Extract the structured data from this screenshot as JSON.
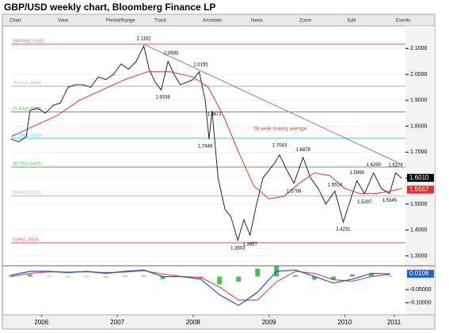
{
  "chart_data": {
    "type": "line",
    "title": "GBP/USD weekly chart, Bloomberg Finance LP",
    "toolbar": [
      "Chart",
      "View",
      "Period/Range",
      "Track",
      "Annotate",
      "News",
      "Zoom",
      "Edit",
      "Events"
    ],
    "xlim": [
      2006.1,
      2011.3
    ],
    "xticks": [
      {
        "value": 2006.5,
        "label": "2006"
      },
      {
        "value": 2007.5,
        "label": "2007"
      },
      {
        "value": 2008.5,
        "label": "2008"
      },
      {
        "value": 2009.5,
        "label": "2009"
      },
      {
        "value": 2010.5,
        "label": "2010"
      },
      {
        "value": 2011.15,
        "label": "2011"
      }
    ],
    "ylim": [
      1.265,
      2.18
    ],
    "yticks": [
      {
        "value": 2.1,
        "label": "2.1000"
      },
      {
        "value": 2.0,
        "label": "2.0000"
      },
      {
        "value": 1.9,
        "label": "1.9000"
      },
      {
        "value": 1.8,
        "label": "1.8000"
      },
      {
        "value": 1.7,
        "label": "1.7000"
      },
      {
        "value": 1.6,
        "label": "1.6000"
      },
      {
        "value": 1.5,
        "label": "1.5000"
      },
      {
        "value": 1.4,
        "label": "1.4000"
      },
      {
        "value": 1.3,
        "label": "1.3000"
      }
    ],
    "series": [
      {
        "name": "GBP/USD",
        "color": "#111111",
        "x": [
          2006.1,
          2006.2,
          2006.3,
          2006.35,
          2006.45,
          2006.55,
          2006.65,
          2006.75,
          2006.85,
          2006.95,
          2007.05,
          2007.15,
          2007.25,
          2007.35,
          2007.45,
          2007.55,
          2007.65,
          2007.75,
          2007.85,
          2007.92,
          2008.0,
          2008.08,
          2008.17,
          2008.25,
          2008.33,
          2008.42,
          2008.5,
          2008.58,
          2008.66,
          2008.71,
          2008.75,
          2008.83,
          2008.92,
          2009.0,
          2009.09,
          2009.17,
          2009.25,
          2009.33,
          2009.42,
          2009.5,
          2009.58,
          2009.64,
          2009.72,
          2009.83,
          2009.95,
          2010.05,
          2010.15,
          2010.25,
          2010.37,
          2010.48,
          2010.58,
          2010.66,
          2010.76,
          2010.88,
          2010.98,
          2011.09,
          2011.17,
          2011.25
        ],
        "values": [
          1.75,
          1.74,
          1.76,
          1.86,
          1.87,
          1.85,
          1.88,
          1.89,
          1.95,
          1.96,
          1.96,
          1.95,
          1.99,
          1.98,
          2.0,
          2.04,
          2.02,
          2.05,
          2.11,
          2.02,
          1.97,
          1.94,
          2.05,
          2.0,
          1.96,
          1.97,
          1.98,
          2.01,
          1.9,
          1.75,
          1.86,
          1.6,
          1.48,
          1.45,
          1.36,
          1.44,
          1.38,
          1.49,
          1.6,
          1.63,
          1.66,
          1.69,
          1.64,
          1.58,
          1.68,
          1.6,
          1.56,
          1.5,
          1.55,
          1.43,
          1.52,
          1.59,
          1.54,
          1.62,
          1.56,
          1.54,
          1.62,
          1.6
        ]
      },
      {
        "name": "50 week moving average",
        "color": "#e03030",
        "x": [
          2006.1,
          2006.4,
          2006.7,
          2007.0,
          2007.3,
          2007.6,
          2007.9,
          2008.2,
          2008.5,
          2008.7,
          2008.9,
          2009.1,
          2009.3,
          2009.5,
          2009.7,
          2009.9,
          2010.1,
          2010.3,
          2010.5,
          2010.7,
          2010.9,
          2011.1,
          2011.25
        ],
        "values": [
          1.76,
          1.8,
          1.84,
          1.9,
          1.94,
          1.98,
          2.01,
          2.01,
          1.99,
          1.95,
          1.84,
          1.7,
          1.57,
          1.52,
          1.53,
          1.58,
          1.62,
          1.61,
          1.56,
          1.54,
          1.54,
          1.55,
          1.56
        ]
      }
    ],
    "trendline": {
      "x": [
        2007.85,
        2011.2
      ],
      "values": [
        2.1162,
        1.66
      ],
      "color": "#7a7ad0"
    },
    "fib_levels": [
      {
        "label": "100.0%(2.1162)",
        "value": 2.1162,
        "color": "#e05050"
      },
      {
        "label": "76.4%(1.9543)",
        "value": 1.9543,
        "color": "#b0b0b0"
      },
      {
        "label": "61.8%(1.8550)",
        "value": 1.855,
        "color": "#40c040"
      },
      {
        "label": "50.0%(1.7533)",
        "value": 1.7533,
        "color": "#40c8e0"
      },
      {
        "label": "38.2%(1.6429)",
        "value": 1.6429,
        "color": "#40c040"
      },
      {
        "label": "23.6%(1.5311)",
        "value": 1.5311,
        "color": "#b0b0b0"
      },
      {
        "label": "0.0%(1.3503)",
        "value": 1.3503,
        "color": "#e05050"
      }
    ],
    "annotations": [
      {
        "x": 2007.85,
        "value": 2.1162,
        "pos": "above"
      },
      {
        "x": 2008.21,
        "value": 2.0593,
        "pos": "above"
      },
      {
        "x": 2008.6,
        "value": 2.0155,
        "pos": "above"
      },
      {
        "x": 2008.1,
        "value": 1.9338,
        "pos": "below"
      },
      {
        "x": 2008.78,
        "value": 1.8671,
        "pos": "below"
      },
      {
        "x": 2008.66,
        "value": 1.7448,
        "pos": "below"
      },
      {
        "x": 2009.64,
        "value": 1.7043,
        "pos": "above"
      },
      {
        "x": 2009.95,
        "value": 1.6878,
        "pos": "above"
      },
      {
        "x": 2009.83,
        "value": 1.5708,
        "pos": "below"
      },
      {
        "x": 2010.37,
        "value": 1.5524,
        "pos": "above"
      },
      {
        "x": 2010.48,
        "value": 1.4231,
        "pos": "below"
      },
      {
        "x": 2010.66,
        "value": 1.5999,
        "pos": "above"
      },
      {
        "x": 2010.76,
        "value": 1.5297,
        "pos": "below"
      },
      {
        "x": 2010.88,
        "value": 1.6299,
        "pos": "above"
      },
      {
        "x": 2011.09,
        "value": 1.5345,
        "pos": "below"
      },
      {
        "x": 2011.17,
        "value": 1.6279,
        "pos": "above"
      },
      {
        "x": 2009.25,
        "value": 1.3657,
        "pos": "below"
      },
      {
        "x": 2009.09,
        "value": 1.3503,
        "pos": "below"
      }
    ],
    "ma_label": "50 week moving average",
    "price_markers": [
      {
        "value": 1.601,
        "label": "1.6010",
        "color": "#000000"
      },
      {
        "value": 1.5557,
        "label": "1.5557",
        "color": "#e03030"
      }
    ],
    "macd": {
      "ylim": [
        -0.14,
        0.035
      ],
      "yticks": [
        {
          "value": -0.05,
          "label": "-0.05000"
        },
        {
          "value": -0.1,
          "label": "-0.10000"
        }
      ],
      "x": [
        2006.1,
        2006.35,
        2006.6,
        2006.85,
        2007.1,
        2007.35,
        2007.6,
        2007.85,
        2008.1,
        2008.35,
        2008.6,
        2008.85,
        2009.1,
        2009.35,
        2009.6,
        2009.85,
        2010.1,
        2010.35,
        2010.6,
        2010.85,
        2011.1
      ],
      "macd": [
        0.005,
        0.02,
        0.02,
        0.015,
        0.02,
        0.012,
        0.02,
        0.025,
        0.0,
        0.0,
        -0.01,
        -0.07,
        -0.11,
        -0.06,
        0.02,
        0.025,
        0.0,
        -0.025,
        -0.01,
        0.012,
        0.01
      ],
      "signal": [
        0.0,
        0.012,
        0.018,
        0.017,
        0.018,
        0.015,
        0.017,
        0.022,
        0.01,
        0.0,
        -0.003,
        -0.04,
        -0.09,
        -0.09,
        -0.02,
        0.02,
        0.012,
        -0.012,
        -0.018,
        0.0,
        0.008
      ],
      "hist": [
        0.005,
        0.008,
        0.002,
        -0.002,
        0.002,
        -0.003,
        0.003,
        0.003,
        -0.01,
        0.0,
        -0.007,
        -0.03,
        -0.02,
        0.03,
        0.04,
        0.005,
        -0.012,
        -0.013,
        0.008,
        0.012,
        0.002
      ],
      "marker": {
        "value": 0.0106,
        "label": "0.0106",
        "color": "#2060d0"
      }
    }
  }
}
